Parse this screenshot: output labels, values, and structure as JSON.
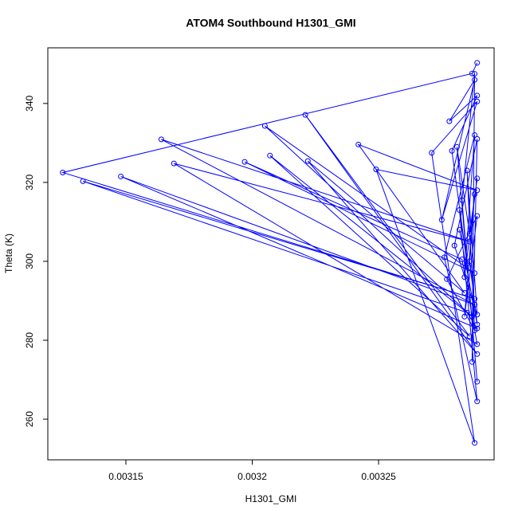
{
  "chart_data": {
    "type": "line",
    "title": "ATOM4 Southbound H1301_GMI",
    "x_label": "H1301_GMI",
    "y_label": "Theta (K)",
    "series": [
      {
        "color": "#0000ff",
        "x": [
          0.003289,
          0.003287,
          0.003125,
          0.003288,
          0.003133,
          0.003285,
          0.003289,
          0.003148,
          0.003288,
          0.003164,
          0.003286,
          0.003169,
          0.003289,
          0.003283,
          0.003197,
          0.003288,
          0.003205,
          0.003287,
          0.003207,
          0.003286,
          0.003221,
          0.003289,
          0.003222,
          0.003284,
          0.003242,
          0.003289,
          0.003249,
          0.003288,
          0.003271,
          0.003289,
          0.003275,
          0.003288,
          0.003278,
          0.003289,
          0.003279,
          0.003285,
          0.003282,
          0.003289,
          0.003276,
          0.003288,
          0.003284,
          0.003289,
          0.003286,
          0.003281,
          0.003289,
          0.003283,
          0.003288,
          0.003287,
          0.003289,
          0.00328,
          0.003289,
          0.003285,
          0.003288,
          0.003277,
          0.003289,
          0.003284,
          0.003288,
          0.003286,
          0.003289,
          0.003282
        ],
        "values": [
          350.3,
          347.6,
          322.5,
          290.5,
          320.3,
          287,
          283,
          321.5,
          289,
          330.9,
          305,
          324.8,
          279,
          300.5,
          325.2,
          297,
          334.3,
          286,
          326.8,
          281,
          337.1,
          276.5,
          325.4,
          292,
          329.6,
          318,
          323.3,
          254,
          327.5,
          340.5,
          310.5,
          346,
          335.5,
          342,
          328,
          299.5,
          313,
          264.5,
          301,
          332,
          296,
          321,
          307,
          329,
          269.5,
          315.5,
          347.5,
          274.5,
          331,
          304,
          286.5,
          323,
          282.5,
          295.5,
          311.5,
          286,
          317,
          300,
          284,
          308
        ]
      }
    ],
    "xlim": [
      0.0031191,
      0.0032957
    ],
    "ylim": [
      249.7,
      354.1
    ],
    "xticks": [
      0.00315,
      0.0032,
      0.00325
    ],
    "yticks": [
      260,
      280,
      300,
      320,
      340
    ]
  }
}
